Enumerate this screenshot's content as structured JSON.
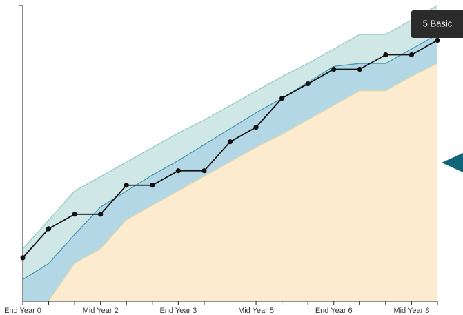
{
  "chart_data": {
    "type": "line",
    "categories": [
      "End Year 0",
      null,
      null,
      "Mid Year 2",
      null,
      null,
      "End Year 3",
      null,
      null,
      "Mid Year 5",
      null,
      null,
      "End Year 6",
      null,
      null,
      "Mid Year 8",
      null
    ],
    "ylim": [
      0,
      20.4
    ],
    "areas": [
      {
        "color": "#cfe7e5",
        "line_color": "#8fc6c4",
        "values": [
          3.6,
          5.6,
          7.6,
          8.6,
          9.6,
          10.6,
          11.6,
          12.5,
          13.5,
          14.5,
          15.5,
          16.4,
          17.4,
          18.4,
          18.4,
          19.4,
          20.4
        ]
      },
      {
        "color": "#b3d7e4",
        "line_color": "#3f93b3",
        "values": [
          1.5,
          2.6,
          4.6,
          6.5,
          7.6,
          8.7,
          9.7,
          10.8,
          11.9,
          13.0,
          14.0,
          15.1,
          16.2,
          16.4,
          16.4,
          17.4,
          18.4
        ]
      },
      {
        "color": "#fdebcf",
        "line_color": "#f2dba0",
        "values": [
          null,
          0,
          2.6,
          3.6,
          5.6,
          6.6,
          7.6,
          8.6,
          9.6,
          10.6,
          11.5,
          12.5,
          13.5,
          14.5,
          14.5,
          15.5,
          16.4
        ]
      }
    ],
    "series": [
      {
        "color": "#111111",
        "values": [
          3,
          5,
          6,
          6,
          8,
          8,
          9,
          9,
          11,
          12,
          14,
          15,
          16,
          16,
          17,
          17,
          18
        ]
      }
    ],
    "annotation": "5 Basic"
  }
}
